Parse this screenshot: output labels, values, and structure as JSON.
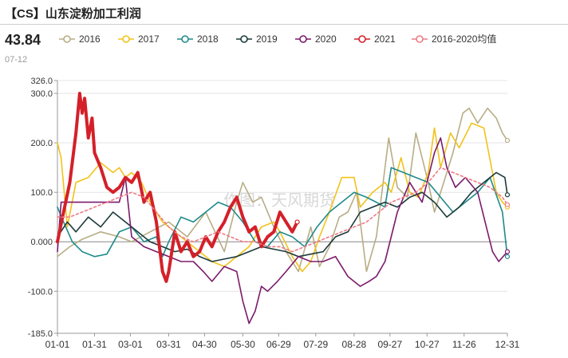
{
  "header": {
    "title": "【CS】山东淀粉加工利润",
    "current_value": "43.84",
    "current_date": "07-12"
  },
  "watermark": "作图：天风期货",
  "chart_data": {
    "type": "line",
    "title": "【CS】山东淀粉加工利润",
    "xlabel": "",
    "ylabel": "",
    "ylim": [
      -185,
      326
    ],
    "yticks": [
      -185,
      -100,
      0,
      100,
      200,
      300,
      326
    ],
    "ytick_labels": [
      "-185.0",
      "-100.0",
      "0.000",
      "100.0",
      "200.0",
      "300.0",
      "326.0"
    ],
    "xticks": [
      0,
      30,
      59,
      90,
      119,
      150,
      179,
      209,
      240,
      269,
      299,
      329,
      364
    ],
    "xtick_labels": [
      "01-01",
      "01-31",
      "03-01",
      "03-31",
      "04-30",
      "05-30",
      "06-29",
      "07-29",
      "08-28",
      "09-27",
      "10-27",
      "11-26",
      "12-31"
    ],
    "legend_position": "top",
    "grid": true,
    "series": [
      {
        "name": "2016",
        "color": "#b8ad85",
        "width": 1.6,
        "x": [
          0,
          10,
          20,
          35,
          50,
          60,
          75,
          90,
          105,
          120,
          135,
          145,
          150,
          158,
          165,
          175,
          185,
          195,
          205,
          212,
          220,
          228,
          235,
          242,
          250,
          258,
          265,
          268,
          275,
          283,
          290,
          300,
          305,
          315,
          320,
          328,
          333,
          340,
          348,
          355,
          360,
          364
        ],
        "y": [
          -30,
          -10,
          5,
          20,
          10,
          0,
          20,
          40,
          10,
          60,
          -20,
          80,
          120,
          80,
          90,
          30,
          -20,
          -60,
          30,
          -50,
          -10,
          50,
          60,
          100,
          -60,
          10,
          150,
          210,
          110,
          90,
          220,
          120,
          60,
          140,
          180,
          260,
          270,
          240,
          270,
          250,
          220,
          205
        ]
      },
      {
        "name": "2017",
        "color": "#f2c21a",
        "width": 1.6,
        "x": [
          0,
          3,
          8,
          15,
          25,
          35,
          45,
          50,
          55,
          60,
          68,
          75,
          85,
          95,
          105,
          115,
          125,
          135,
          145,
          155,
          165,
          175,
          180,
          190,
          198,
          205,
          212,
          220,
          230,
          240,
          245,
          255,
          265,
          270,
          278,
          285,
          292,
          300,
          305,
          310,
          318,
          325,
          335,
          345,
          355,
          360,
          364
        ],
        "y": [
          200,
          170,
          30,
          120,
          130,
          160,
          140,
          150,
          130,
          140,
          120,
          80,
          40,
          20,
          0,
          -20,
          -40,
          -50,
          -30,
          -10,
          30,
          40,
          20,
          -30,
          -60,
          -40,
          10,
          60,
          130,
          130,
          70,
          100,
          120,
          100,
          170,
          100,
          90,
          140,
          230,
          150,
          220,
          190,
          240,
          230,
          100,
          80,
          70
        ]
      },
      {
        "name": "2018",
        "color": "#1f8a8c",
        "width": 1.6,
        "x": [
          0,
          5,
          12,
          20,
          30,
          40,
          50,
          60,
          70,
          80,
          85,
          90,
          100,
          110,
          120,
          130,
          140,
          150,
          160,
          170,
          180,
          190,
          200,
          210,
          220,
          230,
          240,
          250,
          258,
          265,
          270,
          280,
          290,
          300,
          310,
          320,
          330,
          340,
          350,
          360,
          364
        ],
        "y": [
          70,
          40,
          0,
          -20,
          -30,
          -25,
          20,
          30,
          0,
          10,
          -30,
          0,
          50,
          40,
          60,
          80,
          70,
          40,
          0,
          -10,
          20,
          10,
          -10,
          30,
          60,
          80,
          100,
          90,
          80,
          70,
          150,
          140,
          130,
          120,
          90,
          60,
          80,
          100,
          130,
          60,
          -30
        ]
      },
      {
        "name": "2019",
        "color": "#1b3a3a",
        "width": 1.6,
        "x": [
          0,
          8,
          15,
          25,
          35,
          45,
          55,
          65,
          75,
          85,
          95,
          105,
          115,
          125,
          135,
          145,
          155,
          165,
          175,
          185,
          195,
          205,
          215,
          225,
          235,
          245,
          255,
          265,
          275,
          285,
          295,
          305,
          315,
          325,
          335,
          345,
          355,
          362,
          364
        ],
        "y": [
          10,
          40,
          20,
          50,
          30,
          60,
          40,
          20,
          0,
          -10,
          -20,
          -15,
          -30,
          -40,
          -35,
          -30,
          -20,
          -10,
          -15,
          -20,
          -30,
          -25,
          -20,
          10,
          20,
          60,
          70,
          80,
          70,
          90,
          100,
          80,
          50,
          70,
          100,
          120,
          140,
          130,
          95
        ]
      },
      {
        "name": "2020",
        "color": "#7b1a6b",
        "width": 1.6,
        "x": [
          0,
          3,
          10,
          20,
          30,
          40,
          50,
          55,
          60,
          70,
          80,
          90,
          100,
          110,
          118,
          125,
          135,
          145,
          150,
          155,
          160,
          165,
          170,
          178,
          185,
          195,
          205,
          215,
          225,
          235,
          245,
          252,
          258,
          265,
          275,
          285,
          295,
          305,
          310,
          315,
          322,
          330,
          340,
          348,
          352,
          357,
          364
        ],
        "y": [
          -20,
          80,
          80,
          80,
          80,
          80,
          80,
          130,
          10,
          -10,
          -20,
          -30,
          -40,
          -40,
          -60,
          -80,
          -50,
          -60,
          -120,
          -165,
          -140,
          -90,
          -100,
          -80,
          -60,
          -30,
          -40,
          -40,
          -30,
          -70,
          -90,
          -80,
          -70,
          -40,
          60,
          120,
          80,
          180,
          210,
          150,
          110,
          130,
          100,
          20,
          -20,
          -40,
          -20
        ]
      },
      {
        "name": "2021",
        "color": "#d42029",
        "width": 4,
        "x": [
          0,
          5,
          10,
          15,
          18,
          20,
          22,
          25,
          28,
          30,
          35,
          40,
          45,
          50,
          55,
          60,
          65,
          70,
          75,
          80,
          85,
          88,
          90,
          95,
          100,
          105,
          110,
          115,
          120,
          125,
          130,
          135,
          140,
          145,
          150,
          155,
          160,
          165,
          170,
          175,
          180,
          185,
          190,
          194
        ],
        "y": [
          0,
          60,
          120,
          220,
          300,
          260,
          290,
          210,
          250,
          180,
          150,
          110,
          100,
          110,
          130,
          120,
          140,
          80,
          100,
          40,
          -60,
          -80,
          -60,
          20,
          -20,
          0,
          -30,
          -20,
          10,
          -10,
          20,
          40,
          70,
          90,
          50,
          20,
          30,
          -10,
          10,
          20,
          60,
          40,
          20,
          40
        ]
      },
      {
        "name": "2016-2020均值",
        "color": "#ee7b85",
        "width": 1.6,
        "dash": "3,3",
        "x": [
          0,
          10,
          20,
          30,
          40,
          50,
          60,
          70,
          80,
          90,
          100,
          110,
          120,
          130,
          140,
          150,
          160,
          170,
          180,
          190,
          200,
          210,
          220,
          230,
          240,
          250,
          260,
          270,
          280,
          290,
          300,
          310,
          320,
          330,
          340,
          350,
          360,
          364
        ],
        "y": [
          50,
          50,
          60,
          70,
          80,
          90,
          100,
          90,
          60,
          30,
          10,
          0,
          10,
          20,
          10,
          0,
          0,
          -10,
          -10,
          -20,
          -10,
          0,
          10,
          20,
          30,
          40,
          60,
          80,
          90,
          100,
          120,
          150,
          140,
          130,
          120,
          110,
          90,
          75
        ]
      }
    ]
  }
}
